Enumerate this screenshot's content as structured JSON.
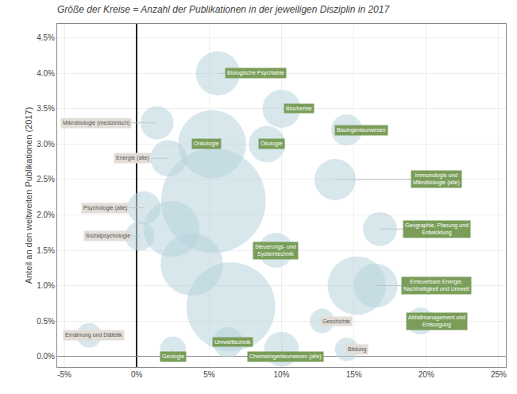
{
  "chart_data": {
    "type": "scatter",
    "title": "Größe der Kreise = Anzahl der Publikationen in der jeweiligen Disziplin in 2017",
    "ylabel": "Anteil an den weltweiten Publikationen (2017)",
    "xlim": [
      -0.055,
      0.255
    ],
    "ylim": [
      -0.0015,
      0.047
    ],
    "xticks": [
      {
        "value": -0.05,
        "label": "-5%"
      },
      {
        "value": 0.0,
        "label": "0%"
      },
      {
        "value": 0.05,
        "label": "5%"
      },
      {
        "value": 0.1,
        "label": "10%"
      },
      {
        "value": 0.15,
        "label": "15%"
      },
      {
        "value": 0.2,
        "label": "20%"
      },
      {
        "value": 0.25,
        "label": "25%"
      }
    ],
    "yticks": [
      {
        "value": 0.0,
        "label": "0.0%"
      },
      {
        "value": 0.005,
        "label": "0.5%"
      },
      {
        "value": 0.01,
        "label": "1.0%"
      },
      {
        "value": 0.015,
        "label": "1.5%"
      },
      {
        "value": 0.02,
        "label": "2.0%"
      },
      {
        "value": 0.025,
        "label": "2.5%"
      },
      {
        "value": 0.03,
        "label": "3.0%"
      },
      {
        "value": 0.035,
        "label": "3.5%"
      },
      {
        "value": 0.04,
        "label": "4.0%"
      },
      {
        "value": 0.045,
        "label": "4.5%"
      }
    ],
    "grid": true,
    "color": "#b8d4dc",
    "labels": [
      "Biologische Psychiatrie",
      "Biochemie",
      "Mikrobiologie (medizinisch)",
      "Onkologie",
      "Energie (alle)",
      "Ökologie",
      "Bauingenieurwesen",
      "Psychologie (alle)",
      "Sozialpsychologie",
      "Immunologie und\nMikrobiologie (alle)",
      "Steuerungs- und\nSystemtechnik",
      "Geographie, Planung und\nEntwicklung",
      "Erneuerbare Energie,\nNachhaltigkeit und Umwelt",
      "Geschichte",
      "Abfallmanagement und\nEntsorgung",
      "Ernährung und Diätetik",
      "Geologie",
      "Umwelttechnik",
      "Chemieingenieurwesen (alle)",
      "Bildung"
    ],
    "x": [
      0.056,
      0.1,
      0.014,
      0.052,
      0.022,
      0.09,
      0.145,
      0.005,
      0.002,
      0.137,
      0.096,
      0.168,
      0.165,
      0.128,
      0.196,
      -0.033,
      0.025,
      0.063,
      0.1,
      0.145
    ],
    "values": [
      0.04,
      0.035,
      0.033,
      0.03,
      0.028,
      0.03,
      0.032,
      0.021,
      0.017,
      0.025,
      0.015,
      0.018,
      0.01,
      0.005,
      0.005,
      0.003,
      0.001,
      0.002,
      0.001,
      0.001
    ],
    "sizes": [
      1600,
      1200,
      900,
      3800,
      1100,
      1100,
      800,
      900,
      700,
      1400,
      1000,
      950,
      1600,
      500,
      600,
      500,
      550,
      750,
      1000,
      450
    ],
    "label_x": [
      0.082,
      0.112,
      -0.028,
      0.048,
      -0.003,
      0.093,
      0.155,
      -0.022,
      -0.02,
      0.207,
      0.096,
      0.207,
      0.207,
      0.138,
      0.207,
      -0.03,
      0.025,
      0.066,
      0.103,
      0.152
    ],
    "label_y": [
      0.04,
      0.035,
      0.033,
      0.03,
      0.028,
      0.03,
      0.032,
      0.021,
      0.017,
      0.025,
      0.015,
      0.018,
      0.01,
      0.005,
      0.005,
      0.003,
      0.0,
      0.002,
      0.0,
      0.001
    ],
    "label_colors": [
      "#7a9e5a",
      "#7a9e5a",
      "#e2ddd7",
      "#7a9e5a",
      "#e2ddd7",
      "#7a9e5a",
      "#7a9e5a",
      "#e2ddd7",
      "#e2ddd7",
      "#7a9e5a",
      "#7a9e5a",
      "#7a9e5a",
      "#7a9e5a",
      "#e2ddd7",
      "#7a9e5a",
      "#e2ddd7",
      "#7a9e5a",
      "#7a9e5a",
      "#7a9e5a",
      "#e2ddd7"
    ],
    "background_bubbles": {
      "x": [
        0.053,
        0.065,
        0.038,
        0.024,
        0.152
      ],
      "values": [
        0.022,
        0.007,
        0.013,
        0.018,
        0.01
      ],
      "sizes": [
        9000,
        6500,
        3200,
        2600,
        2800
      ]
    }
  }
}
